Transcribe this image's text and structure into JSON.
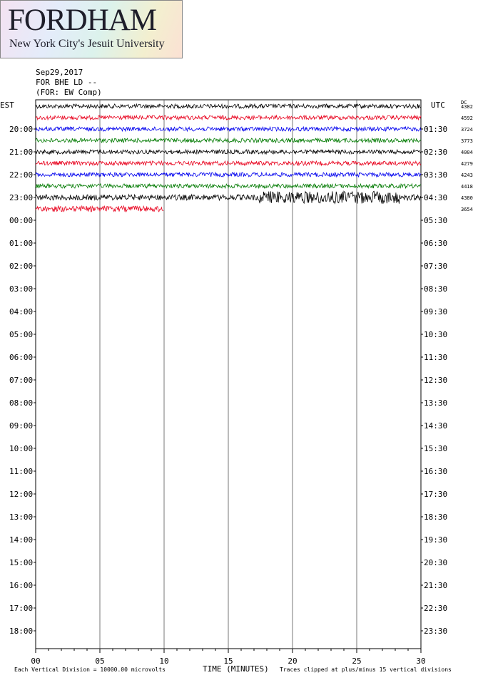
{
  "logo": {
    "word": "FORDHAM",
    "tagline": "New York City's Jesuit University"
  },
  "header": {
    "date": "Sep29,2017",
    "station": "FOR BHE LD --",
    "component": "(FOR: EW Comp)"
  },
  "axes": {
    "left_label": "EST",
    "right_label": "UTC",
    "dc_label": "DC",
    "xlabel": "TIME (MINUTES)"
  },
  "footer": {
    "scale_note": "Each Vertical Division = 10000.00 microvolts",
    "clip_note": "Traces clipped at plus/minus 15 vertical divisions"
  },
  "colors": {
    "black": "#000000",
    "red": "#e8001c",
    "blue": "#0000ee",
    "green": "#007a00"
  },
  "chart_data": {
    "type": "line",
    "title": "Sep29,2017 FOR BHE LD -- (FOR: EW Comp)",
    "xlabel": "TIME (MINUTES)",
    "xlim": [
      0,
      30
    ],
    "x_ticks": [
      "00",
      "05",
      "10",
      "15",
      "20",
      "25",
      "30"
    ],
    "grid": true,
    "est_hours": [
      "20:00",
      "21:00",
      "22:00",
      "23:00",
      "00:00",
      "01:00",
      "02:00",
      "03:00",
      "04:00",
      "05:00",
      "06:00",
      "07:00",
      "08:00",
      "09:00",
      "10:00",
      "11:00",
      "12:00",
      "13:00",
      "14:00",
      "15:00",
      "16:00",
      "17:00",
      "18:00"
    ],
    "utc_hours": [
      "01:30",
      "02:30",
      "03:30",
      "04:30",
      "05:30",
      "06:30",
      "07:30",
      "08:30",
      "09:30",
      "10:30",
      "11:30",
      "12:30",
      "13:30",
      "14:30",
      "15:30",
      "16:30",
      "17:30",
      "18:30",
      "19:30",
      "20:30",
      "21:30",
      "22:30",
      "23:30"
    ],
    "traces": [
      {
        "color": "black",
        "dc": "4382",
        "end_min": 30,
        "amplitude": 3,
        "burst": false
      },
      {
        "color": "red",
        "dc": "4592",
        "end_min": 30,
        "amplitude": 3,
        "burst": false
      },
      {
        "color": "blue",
        "dc": "3724",
        "end_min": 30,
        "amplitude": 3,
        "burst": false
      },
      {
        "color": "green",
        "dc": "3773",
        "end_min": 30,
        "amplitude": 3,
        "burst": false
      },
      {
        "color": "black",
        "dc": "4004",
        "end_min": 30,
        "amplitude": 3,
        "burst": false
      },
      {
        "color": "red",
        "dc": "4279",
        "end_min": 30,
        "amplitude": 3,
        "burst": false
      },
      {
        "color": "blue",
        "dc": "4243",
        "end_min": 30,
        "amplitude": 3,
        "burst": false
      },
      {
        "color": "green",
        "dc": "4418",
        "end_min": 30,
        "amplitude": 3,
        "burst": false
      },
      {
        "color": "black",
        "dc": "4380",
        "end_min": 30,
        "amplitude": 4,
        "burst": true
      },
      {
        "color": "red",
        "dc": "3654",
        "end_min": 10,
        "amplitude": 4,
        "burst": false
      }
    ]
  }
}
